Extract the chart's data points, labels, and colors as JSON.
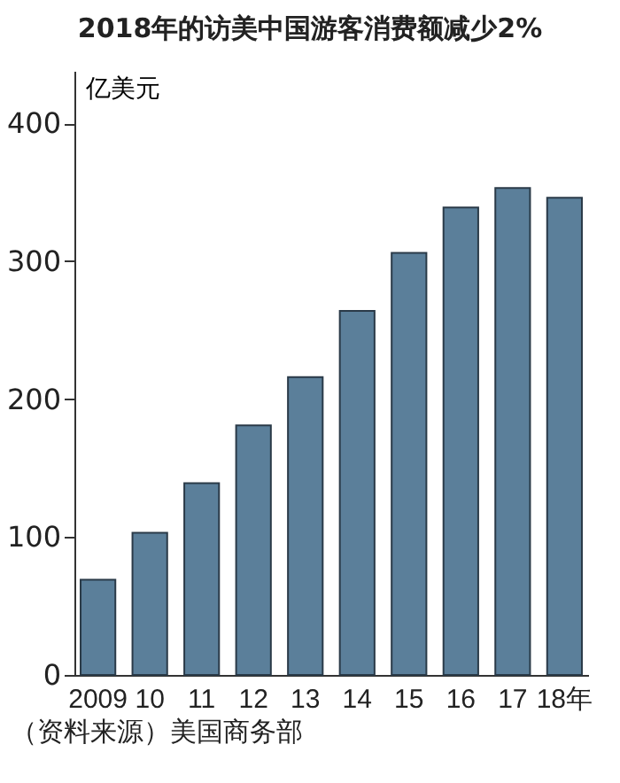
{
  "chart_data": {
    "type": "bar",
    "title": "2018年的访美中国游客消费额减少2%",
    "ylabel": "亿美元",
    "categories": [
      "2009",
      "10",
      "11",
      "12",
      "13",
      "14",
      "15",
      "16",
      "17",
      "18年"
    ],
    "values": [
      69,
      103,
      139,
      181,
      216,
      264,
      306,
      339,
      353,
      346
    ],
    "color": "#5b7f9a",
    "ylim": [
      0,
      438
    ],
    "yticks": [
      0,
      100,
      200,
      300,
      400
    ],
    "grid": false,
    "annotations": [
      "（资料来源）美国商务部"
    ]
  }
}
